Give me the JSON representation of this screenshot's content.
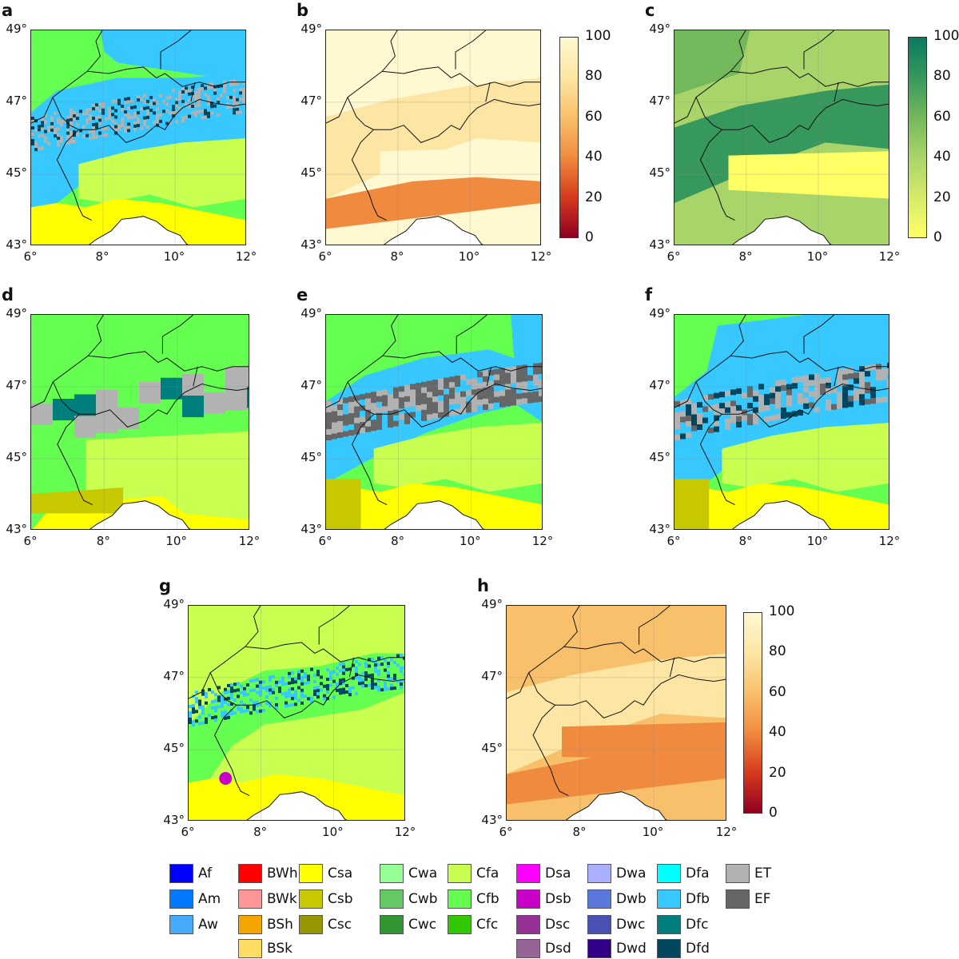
{
  "panels": [
    {
      "id": "a",
      "letter": "a",
      "type": "class",
      "variant": "a"
    },
    {
      "id": "b",
      "letter": "b",
      "type": "cont_orange",
      "variant": "b"
    },
    {
      "id": "c",
      "letter": "c",
      "type": "cont_green",
      "variant": "c"
    },
    {
      "id": "d",
      "letter": "d",
      "type": "class",
      "variant": "d"
    },
    {
      "id": "e",
      "letter": "e",
      "type": "class",
      "variant": "e"
    },
    {
      "id": "f",
      "letter": "f",
      "type": "class",
      "variant": "f"
    },
    {
      "id": "g",
      "letter": "g",
      "type": "class",
      "variant": "g"
    },
    {
      "id": "h",
      "letter": "h",
      "type": "cont_orange",
      "variant": "h"
    }
  ],
  "axes": {
    "lat_ticks": [
      "49°",
      "47°",
      "45°",
      "43°"
    ],
    "lon_ticks": [
      "6°",
      "8°",
      "10°",
      "12°"
    ]
  },
  "colorbars": {
    "orange": {
      "ticks": [
        "100",
        "80",
        "60",
        "40",
        "20",
        "0"
      ],
      "colors": [
        "#fff8d0",
        "#fde6a4",
        "#f9c06b",
        "#f08a3e",
        "#d63a1e",
        "#8f0020"
      ]
    },
    "green": {
      "ticks": [
        "100",
        "80",
        "60",
        "40",
        "20",
        "0"
      ],
      "colors": [
        "#0b7a60",
        "#37985d",
        "#74b85c",
        "#a9d46a",
        "#d6ea6a",
        "#ffff66"
      ]
    }
  },
  "legend": [
    {
      "code": "Af",
      "color": "#0000ff"
    },
    {
      "code": "Am",
      "color": "#0078ff"
    },
    {
      "code": "Aw",
      "color": "#46aafa"
    },
    {
      "code": "BWh",
      "color": "#ff0000"
    },
    {
      "code": "BWk",
      "color": "#ff9696"
    },
    {
      "code": "BSh",
      "color": "#f5a500"
    },
    {
      "code": "BSk",
      "color": "#ffdc64"
    },
    {
      "code": "Csa",
      "color": "#ffff00"
    },
    {
      "code": "Csb",
      "color": "#c8c800"
    },
    {
      "code": "Csc",
      "color": "#969600"
    },
    {
      "code": "Cwa",
      "color": "#96ff96"
    },
    {
      "code": "Cwb",
      "color": "#64c864"
    },
    {
      "code": "Cwc",
      "color": "#329632"
    },
    {
      "code": "Cfa",
      "color": "#c8ff50"
    },
    {
      "code": "Cfb",
      "color": "#64ff50"
    },
    {
      "code": "Cfc",
      "color": "#32c800"
    },
    {
      "code": "Dsa",
      "color": "#ff00ff"
    },
    {
      "code": "Dsb",
      "color": "#c800c8"
    },
    {
      "code": "Dsc",
      "color": "#963296"
    },
    {
      "code": "Dsd",
      "color": "#966496"
    },
    {
      "code": "Dwa",
      "color": "#aaafff"
    },
    {
      "code": "Dwb",
      "color": "#5a78dc"
    },
    {
      "code": "Dwc",
      "color": "#4b50b4"
    },
    {
      "code": "Dwd",
      "color": "#320087"
    },
    {
      "code": "Dfa",
      "color": "#00ffff"
    },
    {
      "code": "Dfb",
      "color": "#37c8ff"
    },
    {
      "code": "Dfc",
      "color": "#007d7d"
    },
    {
      "code": "Dfd",
      "color": "#00465f"
    },
    {
      "code": "ET",
      "color": "#b2b2b2"
    },
    {
      "code": "EF",
      "color": "#666666"
    }
  ]
}
